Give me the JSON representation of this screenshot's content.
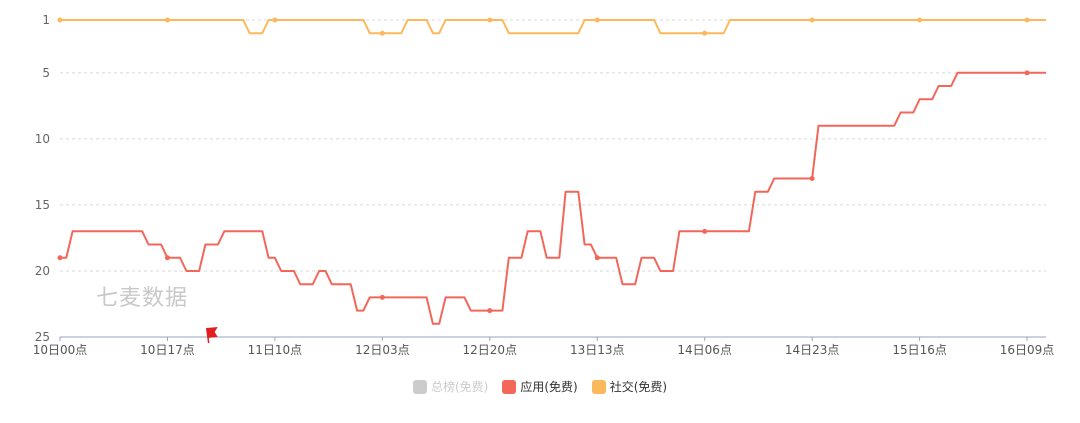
{
  "chart_data": {
    "type": "line",
    "y_inverted": true,
    "ylim": [
      1,
      25
    ],
    "yticks": [
      1,
      5,
      10,
      15,
      20,
      25
    ],
    "x_tick_labels": [
      "10日00点",
      "10日17点",
      "11日10点",
      "12日03点",
      "12日20点",
      "13日13点",
      "14日06点",
      "14日23点",
      "15日16点",
      "16日09点"
    ],
    "x_tick_positions": [
      0,
      17,
      34,
      51,
      68,
      85,
      102,
      119,
      136,
      153
    ],
    "x_max": 156,
    "grid": true,
    "watermark": "七麦数据",
    "series": [
      {
        "name": "总榜(免费)",
        "color": "#cccccc",
        "visible": false,
        "points": []
      },
      {
        "name": "应用(免费)",
        "color": "#f2675a",
        "visible": true,
        "points": [
          [
            0,
            19
          ],
          [
            1,
            19
          ],
          [
            2,
            17
          ],
          [
            13,
            17
          ],
          [
            14,
            18
          ],
          [
            16,
            18
          ],
          [
            17,
            19
          ],
          [
            19,
            19
          ],
          [
            20,
            20
          ],
          [
            22,
            20
          ],
          [
            23,
            18
          ],
          [
            25,
            18
          ],
          [
            26,
            17
          ],
          [
            32,
            17
          ],
          [
            33,
            19
          ],
          [
            34,
            19
          ],
          [
            35,
            20
          ],
          [
            37,
            20
          ],
          [
            38,
            21
          ],
          [
            40,
            21
          ],
          [
            41,
            20
          ],
          [
            42,
            20
          ],
          [
            43,
            21
          ],
          [
            46,
            21
          ],
          [
            47,
            23
          ],
          [
            48,
            23
          ],
          [
            49,
            22
          ],
          [
            58,
            22
          ],
          [
            59,
            24
          ],
          [
            60,
            24
          ],
          [
            61,
            22
          ],
          [
            64,
            22
          ],
          [
            65,
            23
          ],
          [
            70,
            23
          ],
          [
            71,
            19
          ],
          [
            73,
            19
          ],
          [
            74,
            17
          ],
          [
            76,
            17
          ],
          [
            77,
            19
          ],
          [
            79,
            19
          ],
          [
            80,
            14
          ],
          [
            82,
            14
          ],
          [
            83,
            18
          ],
          [
            84,
            18
          ],
          [
            85,
            19
          ],
          [
            88,
            19
          ],
          [
            89,
            21
          ],
          [
            91,
            21
          ],
          [
            92,
            19
          ],
          [
            94,
            19
          ],
          [
            95,
            20
          ],
          [
            97,
            20
          ],
          [
            98,
            17
          ],
          [
            109,
            17
          ],
          [
            110,
            14
          ],
          [
            112,
            14
          ],
          [
            113,
            13
          ],
          [
            119,
            13
          ],
          [
            120,
            9
          ],
          [
            132,
            9
          ],
          [
            133,
            8
          ],
          [
            135,
            8
          ],
          [
            136,
            7
          ],
          [
            138,
            7
          ],
          [
            139,
            6
          ],
          [
            141,
            6
          ],
          [
            142,
            5
          ],
          [
            156,
            5
          ]
        ],
        "markers": [
          [
            0,
            19
          ],
          [
            17,
            19
          ],
          [
            51,
            22
          ],
          [
            68,
            23
          ],
          [
            85,
            19
          ],
          [
            102,
            17
          ],
          [
            119,
            13
          ],
          [
            153,
            5
          ]
        ]
      },
      {
        "name": "社交(免费)",
        "color": "#fcb95b",
        "visible": true,
        "points": [
          [
            0,
            1
          ],
          [
            29,
            1
          ],
          [
            30,
            2
          ],
          [
            32,
            2
          ],
          [
            33,
            1
          ],
          [
            48,
            1
          ],
          [
            49,
            2
          ],
          [
            54,
            2
          ],
          [
            55,
            1
          ],
          [
            58,
            1
          ],
          [
            59,
            2
          ],
          [
            60,
            2
          ],
          [
            61,
            1
          ],
          [
            70,
            1
          ],
          [
            71,
            2
          ],
          [
            82,
            2
          ],
          [
            83,
            1
          ],
          [
            94,
            1
          ],
          [
            95,
            2
          ],
          [
            105,
            2
          ],
          [
            106,
            1
          ],
          [
            156,
            1
          ]
        ],
        "markers": [
          [
            0,
            1
          ],
          [
            17,
            1
          ],
          [
            34,
            1
          ],
          [
            51,
            2
          ],
          [
            68,
            1
          ],
          [
            85,
            1
          ],
          [
            102,
            2
          ],
          [
            119,
            1
          ],
          [
            136,
            1
          ],
          [
            153,
            1
          ]
        ]
      }
    ]
  }
}
